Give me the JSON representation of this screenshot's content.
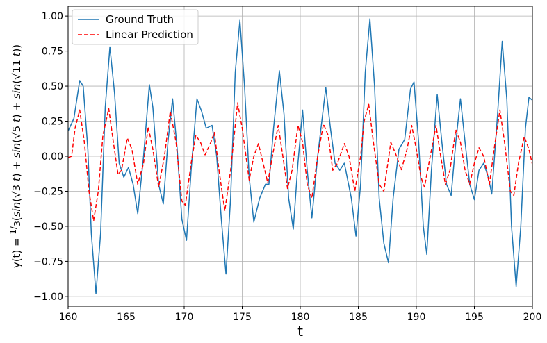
{
  "chart_data": {
    "type": "line",
    "title": "",
    "xlabel": "t",
    "ylabel": "y(t) = 1/3 (sin(√3 t) + sin(√5 t) + sin(√11 t))",
    "ylabel_parts": {
      "prefix": "y(t) = ",
      "frac_num": "1",
      "frac_den": "3",
      "sin": "sin",
      "open": "(",
      "close": ")",
      "plus": " + ",
      "root": "√",
      "r1": "3",
      "r2": "5",
      "r3": "11",
      "var": "t"
    },
    "xlim": [
      160,
      200
    ],
    "ylim": [
      -1.07,
      1.07
    ],
    "xticks": [
      160,
      165,
      170,
      175,
      180,
      185,
      190,
      195,
      200
    ],
    "yticks": [
      -1.0,
      -0.75,
      -0.5,
      -0.25,
      0.0,
      0.25,
      0.5,
      0.75,
      1.0
    ],
    "xtick_labels": [
      "160",
      "165",
      "170",
      "175",
      "180",
      "185",
      "190",
      "195",
      "200"
    ],
    "ytick_labels": [
      "−1.00",
      "−0.75",
      "−0.50",
      "−0.25",
      "0.00",
      "0.25",
      "0.50",
      "0.75",
      "1.00"
    ],
    "grid": true,
    "legend_position": "top-left",
    "series": [
      {
        "name": "Ground Truth",
        "color": "#1f77b4",
        "style": "solid",
        "points": [
          [
            160.0,
            0.18
          ],
          [
            160.5,
            0.27
          ],
          [
            161.0,
            0.54
          ],
          [
            161.3,
            0.5
          ],
          [
            161.7,
            0.05
          ],
          [
            162.0,
            -0.55
          ],
          [
            162.4,
            -0.98
          ],
          [
            162.8,
            -0.55
          ],
          [
            163.2,
            0.35
          ],
          [
            163.6,
            0.78
          ],
          [
            164.0,
            0.45
          ],
          [
            164.4,
            -0.05
          ],
          [
            164.8,
            -0.15
          ],
          [
            165.2,
            -0.08
          ],
          [
            165.6,
            -0.2
          ],
          [
            166.0,
            -0.41
          ],
          [
            166.5,
            0.0
          ],
          [
            167.0,
            0.51
          ],
          [
            167.3,
            0.35
          ],
          [
            167.8,
            -0.2
          ],
          [
            168.2,
            -0.34
          ],
          [
            168.6,
            0.1
          ],
          [
            169.0,
            0.41
          ],
          [
            169.4,
            0.05
          ],
          [
            169.8,
            -0.45
          ],
          [
            170.2,
            -0.6
          ],
          [
            170.6,
            -0.1
          ],
          [
            171.1,
            0.41
          ],
          [
            171.5,
            0.32
          ],
          [
            171.9,
            0.2
          ],
          [
            172.4,
            0.22
          ],
          [
            172.8,
            0.0
          ],
          [
            173.2,
            -0.45
          ],
          [
            173.6,
            -0.84
          ],
          [
            174.0,
            -0.3
          ],
          [
            174.4,
            0.6
          ],
          [
            174.8,
            0.97
          ],
          [
            175.2,
            0.5
          ],
          [
            175.6,
            -0.15
          ],
          [
            176.0,
            -0.47
          ],
          [
            176.5,
            -0.3
          ],
          [
            177.0,
            -0.2
          ],
          [
            177.3,
            -0.2
          ],
          [
            177.7,
            0.2
          ],
          [
            178.2,
            0.61
          ],
          [
            178.6,
            0.3
          ],
          [
            179.0,
            -0.3
          ],
          [
            179.4,
            -0.52
          ],
          [
            179.8,
            -0.05
          ],
          [
            180.2,
            0.33
          ],
          [
            180.6,
            -0.1
          ],
          [
            181.0,
            -0.44
          ],
          [
            181.5,
            0.0
          ],
          [
            182.2,
            0.49
          ],
          [
            182.6,
            0.2
          ],
          [
            183.0,
            -0.05
          ],
          [
            183.4,
            -0.1
          ],
          [
            183.8,
            -0.05
          ],
          [
            184.4,
            -0.3
          ],
          [
            184.8,
            -0.57
          ],
          [
            185.2,
            -0.2
          ],
          [
            185.6,
            0.6
          ],
          [
            186.0,
            0.98
          ],
          [
            186.4,
            0.5
          ],
          [
            186.8,
            -0.3
          ],
          [
            187.2,
            -0.62
          ],
          [
            187.6,
            -0.76
          ],
          [
            188.0,
            -0.3
          ],
          [
            188.5,
            0.05
          ],
          [
            189.0,
            0.12
          ],
          [
            189.5,
            0.48
          ],
          [
            189.8,
            0.53
          ],
          [
            190.2,
            0.1
          ],
          [
            190.6,
            -0.5
          ],
          [
            190.9,
            -0.7
          ],
          [
            191.3,
            -0.1
          ],
          [
            191.8,
            0.44
          ],
          [
            192.2,
            0.1
          ],
          [
            192.6,
            -0.2
          ],
          [
            193.0,
            -0.28
          ],
          [
            193.4,
            0.1
          ],
          [
            193.8,
            0.41
          ],
          [
            194.2,
            0.1
          ],
          [
            194.6,
            -0.2
          ],
          [
            195.0,
            -0.31
          ],
          [
            195.4,
            -0.1
          ],
          [
            195.8,
            -0.05
          ],
          [
            196.2,
            -0.15
          ],
          [
            196.5,
            -0.27
          ],
          [
            197.0,
            0.3
          ],
          [
            197.4,
            0.82
          ],
          [
            197.8,
            0.4
          ],
          [
            198.2,
            -0.5
          ],
          [
            198.6,
            -0.93
          ],
          [
            199.0,
            -0.5
          ],
          [
            199.4,
            0.2
          ],
          [
            199.7,
            0.42
          ],
          [
            200.0,
            0.4
          ]
        ]
      },
      {
        "name": "Linear Prediction",
        "color": "#ff0000",
        "style": "dashed",
        "points": [
          [
            160.0,
            -0.01
          ],
          [
            160.3,
            0.0
          ],
          [
            160.6,
            0.2
          ],
          [
            161.0,
            0.33
          ],
          [
            161.4,
            0.1
          ],
          [
            161.8,
            -0.25
          ],
          [
            162.2,
            -0.46
          ],
          [
            162.6,
            -0.25
          ],
          [
            163.0,
            0.15
          ],
          [
            163.5,
            0.34
          ],
          [
            163.9,
            0.1
          ],
          [
            164.3,
            -0.13
          ],
          [
            164.6,
            -0.1
          ],
          [
            165.1,
            0.13
          ],
          [
            165.5,
            0.05
          ],
          [
            166.0,
            -0.2
          ],
          [
            166.5,
            -0.05
          ],
          [
            166.9,
            0.21
          ],
          [
            167.3,
            0.05
          ],
          [
            167.8,
            -0.22
          ],
          [
            168.3,
            0.0
          ],
          [
            168.8,
            0.32
          ],
          [
            169.3,
            0.1
          ],
          [
            169.8,
            -0.32
          ],
          [
            170.1,
            -0.35
          ],
          [
            170.6,
            -0.05
          ],
          [
            171.0,
            0.15
          ],
          [
            171.4,
            0.1
          ],
          [
            171.8,
            0.01
          ],
          [
            172.3,
            0.1
          ],
          [
            172.6,
            0.17
          ],
          [
            173.0,
            -0.1
          ],
          [
            173.5,
            -0.39
          ],
          [
            174.0,
            -0.1
          ],
          [
            174.6,
            0.38
          ],
          [
            175.0,
            0.2
          ],
          [
            175.6,
            -0.17
          ],
          [
            176.0,
            0.0
          ],
          [
            176.4,
            0.09
          ],
          [
            176.8,
            -0.05
          ],
          [
            177.2,
            -0.19
          ],
          [
            177.6,
            0.0
          ],
          [
            178.1,
            0.22
          ],
          [
            178.5,
            0.0
          ],
          [
            178.9,
            -0.23
          ],
          [
            179.3,
            -0.1
          ],
          [
            179.8,
            0.22
          ],
          [
            180.2,
            0.1
          ],
          [
            180.6,
            -0.2
          ],
          [
            181.0,
            -0.3
          ],
          [
            181.5,
            0.0
          ],
          [
            182.0,
            0.23
          ],
          [
            182.4,
            0.15
          ],
          [
            182.8,
            -0.1
          ],
          [
            183.2,
            -0.05
          ],
          [
            183.8,
            0.09
          ],
          [
            184.2,
            0.0
          ],
          [
            184.7,
            -0.25
          ],
          [
            185.2,
            0.0
          ],
          [
            185.5,
            0.25
          ],
          [
            185.9,
            0.37
          ],
          [
            186.3,
            0.1
          ],
          [
            186.8,
            -0.2
          ],
          [
            187.2,
            -0.25
          ],
          [
            187.8,
            0.1
          ],
          [
            188.3,
            0.0
          ],
          [
            188.7,
            -0.1
          ],
          [
            189.2,
            0.05
          ],
          [
            189.6,
            0.22
          ],
          [
            190.0,
            0.05
          ],
          [
            190.4,
            -0.15
          ],
          [
            190.7,
            -0.22
          ],
          [
            191.2,
            0.0
          ],
          [
            191.7,
            0.22
          ],
          [
            192.1,
            0.0
          ],
          [
            192.5,
            -0.2
          ],
          [
            192.9,
            -0.1
          ],
          [
            193.4,
            0.19
          ],
          [
            193.8,
            0.1
          ],
          [
            194.2,
            -0.1
          ],
          [
            194.6,
            -0.2
          ],
          [
            195.0,
            -0.05
          ],
          [
            195.4,
            0.06
          ],
          [
            195.8,
            0.0
          ],
          [
            196.3,
            -0.2
          ],
          [
            196.7,
            0.05
          ],
          [
            197.2,
            0.33
          ],
          [
            197.6,
            0.1
          ],
          [
            198.1,
            -0.25
          ],
          [
            198.4,
            -0.28
          ],
          [
            198.8,
            -0.05
          ],
          [
            199.3,
            0.14
          ],
          [
            199.7,
            0.05
          ],
          [
            200.0,
            -0.06
          ]
        ]
      }
    ]
  }
}
